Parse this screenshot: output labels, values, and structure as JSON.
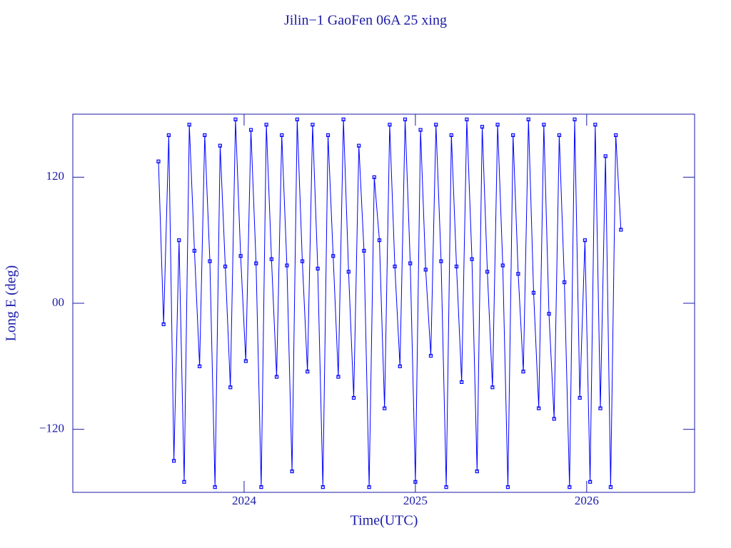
{
  "chart_data": {
    "type": "line",
    "title": "Jilin−1 GaoFen 06A 25 xing",
    "xlabel": "Time(UTC)",
    "ylabel": "Long E (deg)",
    "color": "#0000ff",
    "markers": true,
    "grid": false,
    "xlim": [
      2023.0,
      2026.63
    ],
    "xticks": [
      2024,
      2025,
      2026
    ],
    "ylim": [
      -180,
      180
    ],
    "yticks": [
      {
        "value": -120,
        "label": "−120"
      },
      {
        "value": 0,
        "label": "00"
      },
      120
    ],
    "x": [
      2023.5,
      2023.53,
      2023.56,
      2023.59,
      2023.62,
      2023.65,
      2023.68,
      2023.71,
      2023.74,
      2023.77,
      2023.8,
      2023.83,
      2023.86,
      2023.89,
      2023.92,
      2023.95,
      2023.98,
      2024.01,
      2024.04,
      2024.07,
      2024.1,
      2024.13,
      2024.16,
      2024.19,
      2024.22,
      2024.25,
      2024.28,
      2024.31,
      2024.34,
      2024.37,
      2024.4,
      2024.43,
      2024.46,
      2024.49,
      2024.52,
      2024.55,
      2024.58,
      2024.61,
      2024.64,
      2024.67,
      2024.7,
      2024.73,
      2024.76,
      2024.79,
      2024.82,
      2024.85,
      2024.88,
      2024.91,
      2024.94,
      2024.97,
      2025.0,
      2025.03,
      2025.06,
      2025.09,
      2025.12,
      2025.15,
      2025.18,
      2025.21,
      2025.24,
      2025.27,
      2025.3,
      2025.33,
      2025.36,
      2025.39,
      2025.42,
      2025.45,
      2025.48,
      2025.51,
      2025.54,
      2025.57,
      2025.6,
      2025.63,
      2025.66,
      2025.69,
      2025.72,
      2025.75,
      2025.78,
      2025.81,
      2025.84,
      2025.87,
      2025.9,
      2025.93,
      2025.96,
      2025.99,
      2026.02,
      2026.05,
      2026.08,
      2026.11,
      2026.14,
      2026.17,
      2026.2
    ],
    "values": [
      135,
      -20,
      160,
      -150,
      60,
      -170,
      170,
      50,
      -60,
      160,
      40,
      -175,
      150,
      35,
      -80,
      175,
      45,
      -55,
      165,
      38,
      -175,
      170,
      42,
      -70,
      160,
      36,
      -160,
      175,
      40,
      -65,
      170,
      33,
      -175,
      160,
      45,
      -70,
      175,
      30,
      -90,
      150,
      50,
      -175,
      120,
      60,
      -100,
      170,
      35,
      -60,
      175,
      38,
      -170,
      165,
      32,
      -50,
      170,
      40,
      -175,
      160,
      35,
      -75,
      175,
      42,
      -160,
      168,
      30,
      -80,
      170,
      36,
      -175,
      160,
      28,
      -65,
      175,
      10,
      -100,
      170,
      -10,
      -110,
      160,
      20,
      -175,
      175,
      -90,
      60,
      -170,
      170,
      -100,
      140,
      -175,
      160,
      70
    ]
  }
}
